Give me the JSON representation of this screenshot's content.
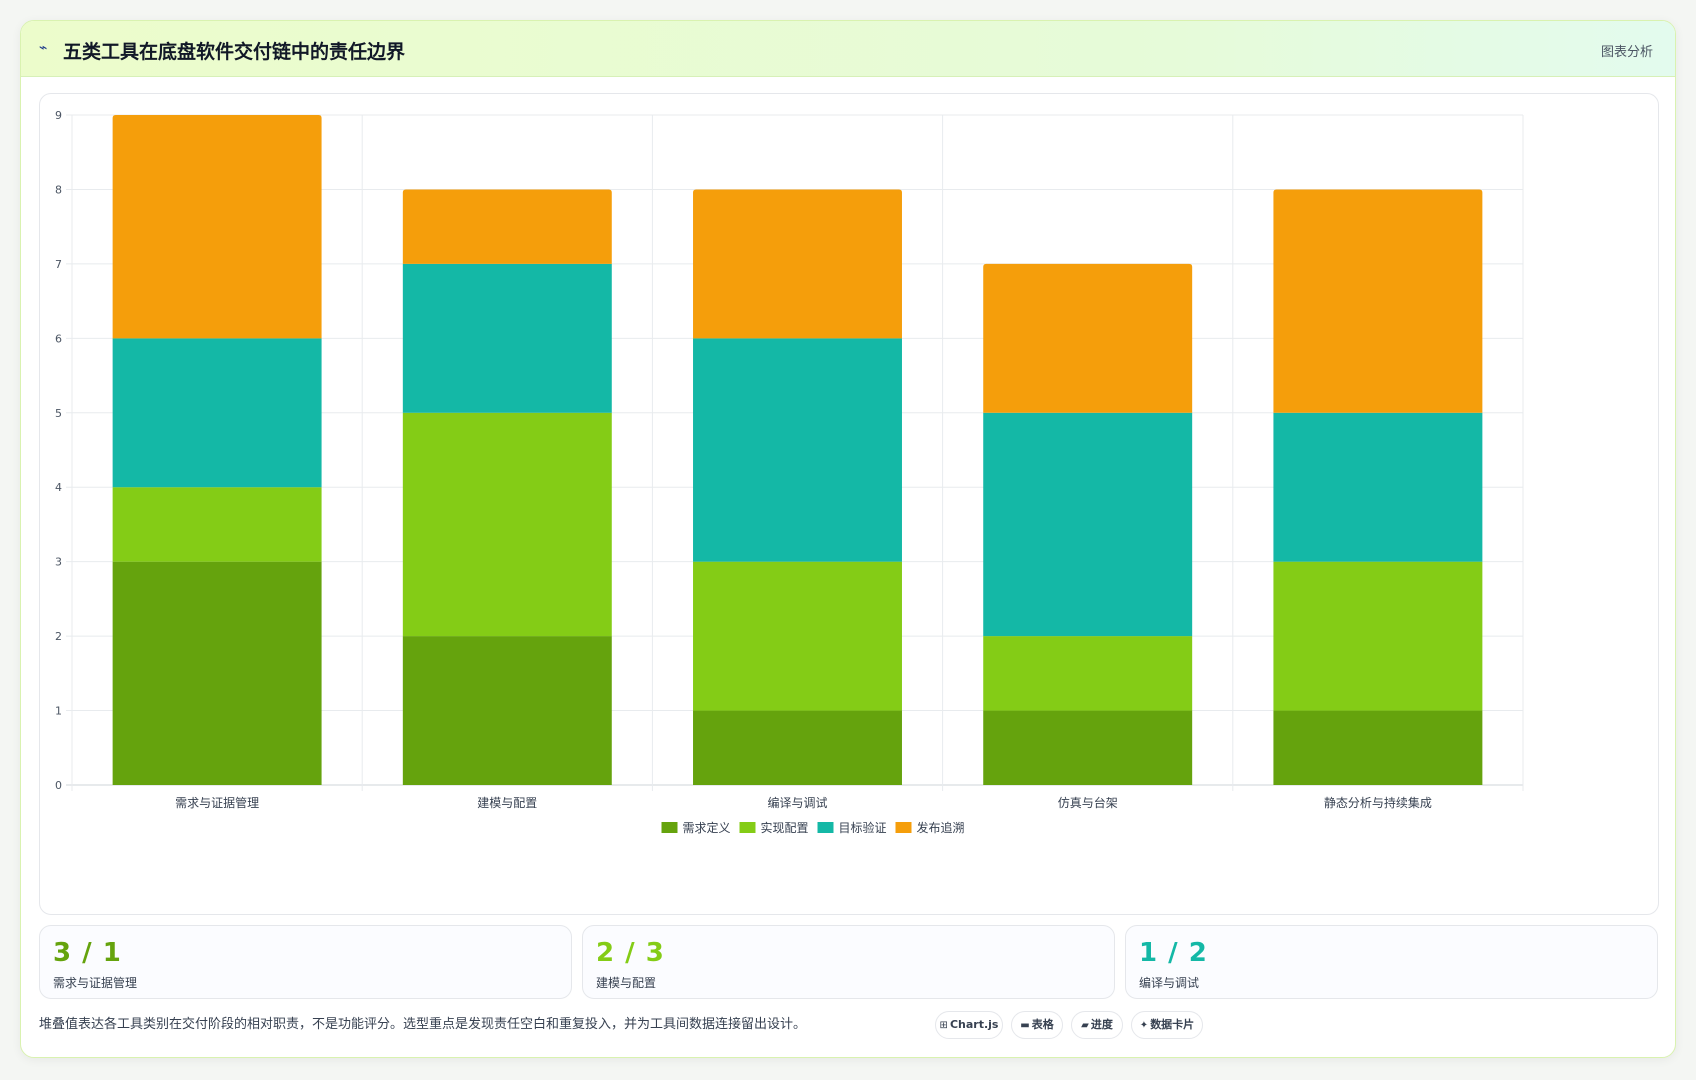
{
  "header": {
    "icon": "chart-trend-icon",
    "title": "五类工具在底盘软件交付链中的责任边界",
    "tag": "图表分析"
  },
  "chart_data": {
    "type": "bar",
    "stacked": true,
    "categories": [
      "需求与证据管理",
      "建模与配置",
      "编译与调试",
      "仿真与台架",
      "静态分析与持续集成"
    ],
    "series": [
      {
        "name": "需求定义",
        "color": "#65a30d",
        "values": [
          3,
          2,
          1,
          1,
          1
        ]
      },
      {
        "name": "实现配置",
        "color": "#84cc16",
        "values": [
          1,
          3,
          2,
          1,
          2
        ]
      },
      {
        "name": "目标验证",
        "color": "#14b8a6",
        "values": [
          2,
          2,
          3,
          3,
          2
        ]
      },
      {
        "name": "发布追溯",
        "color": "#f59e0b",
        "values": [
          3,
          1,
          2,
          2,
          3
        ]
      }
    ],
    "ylim": [
      0,
      9
    ],
    "yticks": [
      "0",
      "1",
      "2",
      "3",
      "4",
      "5",
      "6",
      "7",
      "8",
      "9"
    ],
    "grid": true,
    "legend": "bottom"
  },
  "stats": [
    {
      "value": "3 / 1",
      "label": "需求与证据管理",
      "color": "#65a30d"
    },
    {
      "value": "2 / 3",
      "label": "建模与配置",
      "color": "#84cc16"
    },
    {
      "value": "1 / 2",
      "label": "编译与调试",
      "color": "#14b8a6"
    }
  ],
  "footer": {
    "note": "堆叠值表达各工具类别在交付阶段的相对职责，不是功能评分。选型重点是发现责任空白和重复投入，并为工具间数据连接留出设计。",
    "chips": [
      {
        "icon": "⊞",
        "label": "Chart.js"
      },
      {
        "icon": "▬",
        "label": "表格"
      },
      {
        "icon": "▰",
        "label": "进度"
      },
      {
        "icon": "✦",
        "label": "数据卡片"
      }
    ]
  }
}
